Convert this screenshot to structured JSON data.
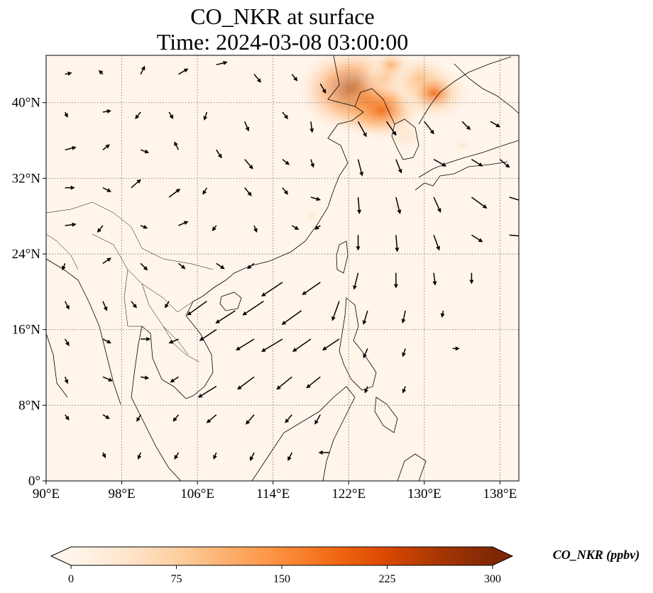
{
  "title": {
    "line1": "CO_NKR at surface",
    "line2": "Time: 2024-03-08 03:00:00"
  },
  "map": {
    "lon_range": [
      90,
      140
    ],
    "lat_range": [
      0,
      45
    ],
    "lon_ticks": [
      {
        "value": 90,
        "label": "90°E"
      },
      {
        "value": 98,
        "label": "98°E"
      },
      {
        "value": 106,
        "label": "106°E"
      },
      {
        "value": 114,
        "label": "114°E"
      },
      {
        "value": 122,
        "label": "122°E"
      },
      {
        "value": 130,
        "label": "130°E"
      },
      {
        "value": 138,
        "label": "138°E"
      }
    ],
    "lat_ticks": [
      {
        "value": 0,
        "label": "0°"
      },
      {
        "value": 8,
        "label": "8°N"
      },
      {
        "value": 16,
        "label": "16°N"
      },
      {
        "value": 24,
        "label": "24°N"
      },
      {
        "value": 32,
        "label": "32°N"
      },
      {
        "value": 40,
        "label": "40°N"
      }
    ],
    "gridlines": true,
    "background_color": "#fff5eb",
    "colors": {
      "coast": "#000000",
      "grid": "#777777",
      "wind": "#000000"
    }
  },
  "colorbar": {
    "label": "CO_NKR (ppbv)",
    "min": 0,
    "max": 300,
    "ticks": [
      "0",
      "75",
      "150",
      "225",
      "300"
    ],
    "tick_values": [
      0,
      75,
      150,
      225,
      300
    ],
    "colormap": [
      "#fff5eb",
      "#fee6ce",
      "#fdd0a2",
      "#fdae6b",
      "#fd8d3c",
      "#f16913",
      "#d94801",
      "#a63603",
      "#7f2704"
    ],
    "extend": "both"
  },
  "concentration_hotspots": [
    {
      "lon": 122.5,
      "lat": 41.3,
      "value": 290
    },
    {
      "lon": 123.8,
      "lat": 40.2,
      "value": 200
    },
    {
      "lon": 125.5,
      "lat": 39.2,
      "value": 190
    },
    {
      "lon": 126.0,
      "lat": 42.8,
      "value": 110
    },
    {
      "lon": 129.5,
      "lat": 42.5,
      "value": 130
    },
    {
      "lon": 131.0,
      "lat": 41.0,
      "value": 170
    },
    {
      "lon": 126.5,
      "lat": 44.0,
      "value": 100
    },
    {
      "lon": 128.0,
      "lat": 36.5,
      "value": 50
    },
    {
      "lon": 134.0,
      "lat": 35.5,
      "value": 35
    },
    {
      "lon": 118.0,
      "lat": 28.0,
      "value": 25
    },
    {
      "lon": 127.0,
      "lat": 29.0,
      "value": 30
    }
  ],
  "wind_vectors": [
    {
      "lon": 92,
      "lat": 43,
      "u": 0.5,
      "v": 0.1
    },
    {
      "lon": 96,
      "lat": 43,
      "u": -0.3,
      "v": 0.3
    },
    {
      "lon": 100,
      "lat": 43,
      "u": 0.3,
      "v": 0.6
    },
    {
      "lon": 104,
      "lat": 43,
      "u": 0.7,
      "v": 0.4
    },
    {
      "lon": 108,
      "lat": 44,
      "u": 0.8,
      "v": 0.2
    },
    {
      "lon": 112,
      "lat": 43,
      "u": 0.5,
      "v": -0.6
    },
    {
      "lon": 116,
      "lat": 43,
      "u": 0.4,
      "v": -0.5
    },
    {
      "lon": 119,
      "lat": 42,
      "u": 0.4,
      "v": -0.7
    },
    {
      "lon": 92,
      "lat": 39,
      "u": 0.2,
      "v": -0.4
    },
    {
      "lon": 96,
      "lat": 39,
      "u": 0.6,
      "v": 0.1
    },
    {
      "lon": 100,
      "lat": 39,
      "u": -0.4,
      "v": -0.5
    },
    {
      "lon": 103,
      "lat": 39,
      "u": 0.3,
      "v": -0.5
    },
    {
      "lon": 107,
      "lat": 39,
      "u": -0.2,
      "v": -0.6
    },
    {
      "lon": 111,
      "lat": 38,
      "u": 0.3,
      "v": -0.7
    },
    {
      "lon": 115,
      "lat": 39,
      "u": 0.4,
      "v": -0.5
    },
    {
      "lon": 118,
      "lat": 38,
      "u": 0.1,
      "v": -0.8
    },
    {
      "lon": 92,
      "lat": 35,
      "u": 0.8,
      "v": 0.2
    },
    {
      "lon": 96,
      "lat": 35,
      "u": 0.5,
      "v": 0.4
    },
    {
      "lon": 100,
      "lat": 35,
      "u": 0.6,
      "v": -0.2
    },
    {
      "lon": 104,
      "lat": 35,
      "u": -0.3,
      "v": 0.6
    },
    {
      "lon": 108,
      "lat": 35,
      "u": 0.4,
      "v": -0.6
    },
    {
      "lon": 111,
      "lat": 34,
      "u": 0.6,
      "v": -0.7
    },
    {
      "lon": 115,
      "lat": 34,
      "u": 0.5,
      "v": -0.4
    },
    {
      "lon": 118,
      "lat": 34,
      "u": 0.2,
      "v": -0.6
    },
    {
      "lon": 92,
      "lat": 31,
      "u": 0.7,
      "v": 0.0
    },
    {
      "lon": 96,
      "lat": 31,
      "u": 0.6,
      "v": -0.3
    },
    {
      "lon": 99,
      "lat": 31,
      "u": 0.7,
      "v": 0.6
    },
    {
      "lon": 103,
      "lat": 30,
      "u": 0.8,
      "v": 0.6
    },
    {
      "lon": 107,
      "lat": 31,
      "u": -0.3,
      "v": -0.5
    },
    {
      "lon": 111,
      "lat": 31,
      "u": 0.5,
      "v": -0.6
    },
    {
      "lon": 115,
      "lat": 31,
      "u": 0.4,
      "v": -0.5
    },
    {
      "lon": 118,
      "lat": 30,
      "u": 0.7,
      "v": -0.2
    },
    {
      "lon": 92,
      "lat": 27,
      "u": 0.8,
      "v": 0.1
    },
    {
      "lon": 96,
      "lat": 27,
      "u": -0.4,
      "v": -0.5
    },
    {
      "lon": 100,
      "lat": 27,
      "u": 0.5,
      "v": -0.2
    },
    {
      "lon": 104,
      "lat": 27,
      "u": 0.7,
      "v": 0.3
    },
    {
      "lon": 108,
      "lat": 27,
      "u": -0.3,
      "v": -0.4
    },
    {
      "lon": 112,
      "lat": 27,
      "u": 0.2,
      "v": -0.5
    },
    {
      "lon": 116,
      "lat": 27,
      "u": 0.5,
      "v": -0.3
    },
    {
      "lon": 119,
      "lat": 27,
      "u": -0.4,
      "v": -0.3
    },
    {
      "lon": 92,
      "lat": 23,
      "u": -0.2,
      "v": -0.5
    },
    {
      "lon": 96,
      "lat": 23,
      "u": 0.6,
      "v": 0.4
    },
    {
      "lon": 100,
      "lat": 23,
      "u": 0.5,
      "v": -0.5
    },
    {
      "lon": 104,
      "lat": 23,
      "u": 0.5,
      "v": -0.4
    },
    {
      "lon": 108,
      "lat": 23,
      "u": 0.6,
      "v": -0.4
    },
    {
      "lon": 112,
      "lat": 23,
      "u": -0.5,
      "v": -0.4
    },
    {
      "lon": 115,
      "lat": 21,
      "u": -1.5,
      "v": -1.0
    },
    {
      "lon": 119,
      "lat": 21,
      "u": -1.3,
      "v": -0.9
    },
    {
      "lon": 92,
      "lat": 19,
      "u": 0.3,
      "v": -0.6
    },
    {
      "lon": 96,
      "lat": 19,
      "u": 0.3,
      "v": -0.7
    },
    {
      "lon": 99,
      "lat": 19,
      "u": 0.4,
      "v": -0.5
    },
    {
      "lon": 103,
      "lat": 19,
      "u": -0.3,
      "v": -0.5
    },
    {
      "lon": 107,
      "lat": 19,
      "u": -1.4,
      "v": -1.0
    },
    {
      "lon": 110,
      "lat": 18,
      "u": -1.4,
      "v": -0.9
    },
    {
      "lon": 113,
      "lat": 19,
      "u": -1.5,
      "v": -1.0
    },
    {
      "lon": 117,
      "lat": 18,
      "u": -1.4,
      "v": -1.0
    },
    {
      "lon": 121,
      "lat": 19,
      "u": -0.5,
      "v": -1.4
    },
    {
      "lon": 92,
      "lat": 15,
      "u": 0.3,
      "v": -0.5
    },
    {
      "lon": 96,
      "lat": 15,
      "u": 0.6,
      "v": -0.3
    },
    {
      "lon": 100,
      "lat": 15,
      "u": 0.7,
      "v": 0.0
    },
    {
      "lon": 104,
      "lat": 15,
      "u": -0.7,
      "v": -0.3
    },
    {
      "lon": 108,
      "lat": 16,
      "u": -1.2,
      "v": -0.8
    },
    {
      "lon": 112,
      "lat": 15,
      "u": -1.3,
      "v": -0.8
    },
    {
      "lon": 115,
      "lat": 15,
      "u": -1.5,
      "v": -0.9
    },
    {
      "lon": 118,
      "lat": 15,
      "u": -1.3,
      "v": -0.9
    },
    {
      "lon": 121,
      "lat": 15,
      "u": -1.2,
      "v": -0.8
    },
    {
      "lon": 92,
      "lat": 11,
      "u": 0.2,
      "v": -0.5
    },
    {
      "lon": 96,
      "lat": 11,
      "u": 0.7,
      "v": -0.3
    },
    {
      "lon": 100,
      "lat": 11,
      "u": 0.6,
      "v": -0.1
    },
    {
      "lon": 104,
      "lat": 11,
      "u": -0.6,
      "v": -0.4
    },
    {
      "lon": 108,
      "lat": 10,
      "u": -1.3,
      "v": -0.8
    },
    {
      "lon": 112,
      "lat": 11,
      "u": -1.2,
      "v": -0.9
    },
    {
      "lon": 116,
      "lat": 11,
      "u": -1.1,
      "v": -0.9
    },
    {
      "lon": 119,
      "lat": 11,
      "u": -1.0,
      "v": -0.8
    },
    {
      "lon": 92,
      "lat": 7,
      "u": 0.3,
      "v": -0.4
    },
    {
      "lon": 96,
      "lat": 7,
      "u": 0.5,
      "v": -0.3
    },
    {
      "lon": 100,
      "lat": 7,
      "u": -0.3,
      "v": -0.5
    },
    {
      "lon": 104,
      "lat": 7,
      "u": -0.4,
      "v": -0.5
    },
    {
      "lon": 108,
      "lat": 7,
      "u": -0.7,
      "v": -0.6
    },
    {
      "lon": 112,
      "lat": 7,
      "u": -0.6,
      "v": -0.7
    },
    {
      "lon": 116,
      "lat": 7,
      "u": -0.5,
      "v": -0.6
    },
    {
      "lon": 119,
      "lat": 7,
      "u": -0.4,
      "v": -0.7
    },
    {
      "lon": 96,
      "lat": 3,
      "u": 0.2,
      "v": -0.4
    },
    {
      "lon": 100,
      "lat": 3,
      "u": -0.2,
      "v": -0.5
    },
    {
      "lon": 104,
      "lat": 3,
      "u": -0.3,
      "v": -0.5
    },
    {
      "lon": 108,
      "lat": 3,
      "u": -0.2,
      "v": -0.5
    },
    {
      "lon": 112,
      "lat": 3,
      "u": -0.3,
      "v": -0.6
    },
    {
      "lon": 116,
      "lat": 3,
      "u": -0.3,
      "v": -0.6
    },
    {
      "lon": 120,
      "lat": 3,
      "u": -0.8,
      "v": 0.0
    },
    {
      "lon": 123,
      "lat": 38,
      "u": 0.6,
      "v": -1.1
    },
    {
      "lon": 126,
      "lat": 38,
      "u": 0.7,
      "v": -1.0
    },
    {
      "lon": 130,
      "lat": 38,
      "u": 0.7,
      "v": -0.9
    },
    {
      "lon": 134,
      "lat": 38,
      "u": 0.6,
      "v": -0.6
    },
    {
      "lon": 137,
      "lat": 38,
      "u": 0.7,
      "v": -0.4
    },
    {
      "lon": 123,
      "lat": 34,
      "u": 0.3,
      "v": -1.2
    },
    {
      "lon": 127,
      "lat": 34,
      "u": 0.4,
      "v": -1.0
    },
    {
      "lon": 131,
      "lat": 34,
      "u": 0.9,
      "v": -0.5
    },
    {
      "lon": 135,
      "lat": 34,
      "u": 0.8,
      "v": -0.5
    },
    {
      "lon": 138,
      "lat": 34,
      "u": 0.7,
      "v": -0.6
    },
    {
      "lon": 123,
      "lat": 30,
      "u": 0.1,
      "v": -1.2
    },
    {
      "lon": 127,
      "lat": 30,
      "u": 0.3,
      "v": -1.2
    },
    {
      "lon": 131,
      "lat": 30,
      "u": 0.5,
      "v": -1.1
    },
    {
      "lon": 135,
      "lat": 30,
      "u": 1.1,
      "v": -0.8
    },
    {
      "lon": 139,
      "lat": 30,
      "u": 1.0,
      "v": -0.3
    },
    {
      "lon": 123,
      "lat": 26,
      "u": 0.0,
      "v": -1.1
    },
    {
      "lon": 127,
      "lat": 26,
      "u": 0.1,
      "v": -1.2
    },
    {
      "lon": 131,
      "lat": 26,
      "u": 0.4,
      "v": -1.1
    },
    {
      "lon": 135,
      "lat": 26,
      "u": 0.8,
      "v": -0.5
    },
    {
      "lon": 139,
      "lat": 26,
      "u": 1.0,
      "v": -0.1
    },
    {
      "lon": 123,
      "lat": 22,
      "u": -0.3,
      "v": -1.2
    },
    {
      "lon": 127,
      "lat": 22,
      "u": 0.0,
      "v": -1.1
    },
    {
      "lon": 131,
      "lat": 22,
      "u": 0.1,
      "v": -0.9
    },
    {
      "lon": 135,
      "lat": 22,
      "u": 0.0,
      "v": -0.8
    },
    {
      "lon": 124,
      "lat": 18,
      "u": -0.3,
      "v": -1.0
    },
    {
      "lon": 128,
      "lat": 18,
      "u": -0.2,
      "v": -0.9
    },
    {
      "lon": 132,
      "lat": 18,
      "u": -0.1,
      "v": -0.5
    },
    {
      "lon": 124,
      "lat": 14,
      "u": -0.3,
      "v": -0.7
    },
    {
      "lon": 128,
      "lat": 14,
      "u": -0.2,
      "v": -0.6
    },
    {
      "lon": 133,
      "lat": 14,
      "u": 0.5,
      "v": 0.0
    },
    {
      "lon": 124,
      "lat": 10,
      "u": -0.2,
      "v": -0.5
    },
    {
      "lon": 128,
      "lat": 10,
      "u": -0.2,
      "v": -0.5
    }
  ]
}
